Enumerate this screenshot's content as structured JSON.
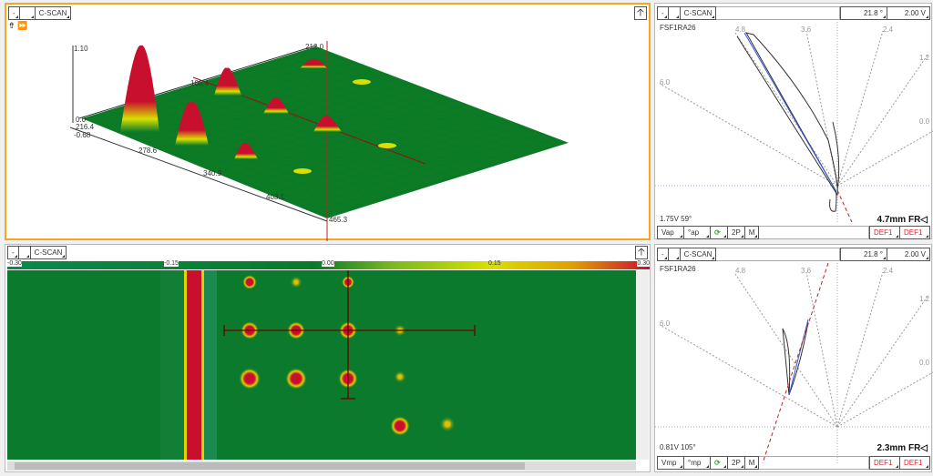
{
  "top_left": {
    "toolbar": [
      "-",
      "",
      "C-SCAN"
    ],
    "axis_labels": {
      "z_top": "1.10",
      "origin": "0.0",
      "y_left": "216.4",
      "z_min": "-0.68",
      "y_mid": "106.4",
      "y_back": "212.0",
      "x1": "278.6",
      "x2": "340.9",
      "x3": "403.1",
      "x4": "465.3"
    }
  },
  "bottom_left": {
    "toolbar": [
      "-",
      "",
      "C-SCAN"
    ],
    "colorbar": {
      "ticks": [
        "-0.30",
        "-0.15",
        "0.00",
        "0.15",
        "0.30"
      ],
      "colors": [
        "#0a7a3a",
        "#0a7a2a",
        "#c8e000",
        "#e0a000",
        "#c8102e"
      ]
    }
  },
  "right_top": {
    "toolbar": [
      "-",
      "",
      "C-SCAN"
    ],
    "angle": "21.8 °",
    "volt": "2.00 V",
    "probe": "FSF1RA26",
    "rays": [
      "4.8",
      "3.6",
      "2.4",
      "1.2",
      "0.0",
      "6.0"
    ],
    "readout": "1.75V 59°",
    "depth": "4.7mm FR◁",
    "buttons": [
      "Vap",
      "°ap",
      "2P",
      "M"
    ],
    "def": [
      "DEF1",
      "DEF1"
    ]
  },
  "right_bottom": {
    "toolbar": [
      "-",
      "",
      "C-SCAN"
    ],
    "angle": "21.8 °",
    "volt": "2.00 V",
    "probe": "FSF1RA26",
    "rays": [
      "4.8",
      "3.6",
      "2.4",
      "1.2",
      "0.0",
      "6.0"
    ],
    "readout": "0.81V 105°",
    "depth": "2.3mm FR◁",
    "buttons": [
      "Vmp",
      "°mp",
      "2P",
      "M"
    ],
    "def": [
      "DEF1",
      "DEF1"
    ]
  },
  "colors": {
    "accent": "#f5a623",
    "signal_red": "#c8102e",
    "green": "#0a7a2a"
  }
}
